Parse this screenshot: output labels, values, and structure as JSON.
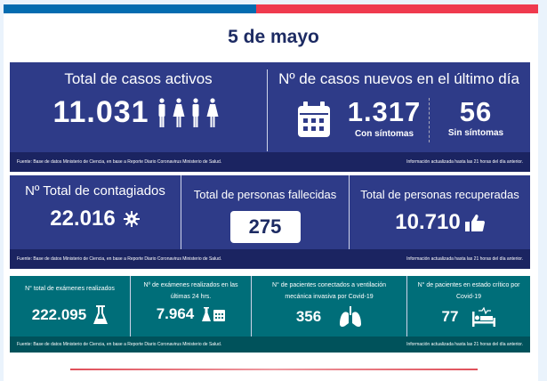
{
  "title": "5 de mayo",
  "colors": {
    "blue": "#036cb0",
    "red": "#ef3a4e",
    "navy": "#2e3b88",
    "teal": "#006e79"
  },
  "panel1": {
    "active": {
      "label": "Total de casos activos",
      "value": "11.031",
      "icon": "people-icon"
    },
    "new": {
      "label": "Nº de casos nuevos en el último día",
      "icon": "calendar-icon",
      "with_value": "1.317",
      "with_label": "Con síntomas",
      "without_value": "56",
      "without_label": "Sin síntomas"
    },
    "source": "Fuente: Base de datos Ministerio de Ciencia, en base a Reporte Diario Coronavirus Ministerio de Salud.",
    "updated": "Información actualizada hasta las 21 horas  del día anterior."
  },
  "panel2": {
    "infected": {
      "label": "Nº Total de contagiados",
      "value": "22.016",
      "icon": "virus-icon"
    },
    "deceased": {
      "label": "Total de personas fallecidas",
      "value": "275"
    },
    "recovered": {
      "label": "Total de personas recuperadas",
      "value": "10.710",
      "icon": "thumbs-up-icon"
    },
    "source": "Fuente: Base de datos Ministerio de Ciencia, en base a Reporte Diario Coronavirus Ministerio de Salud.",
    "updated": "Información actualizada hasta las 21 horas  del día anterior."
  },
  "panel3": {
    "items": [
      {
        "label": "N° total de exámenes realizados",
        "value": "222.095",
        "icon": "flask-icon"
      },
      {
        "label": "Nº de exámenes realizados en las últimas 24 hrs.",
        "value": "7.964",
        "icon": "flask-calendar-icon"
      },
      {
        "label": "N° de pacientes conectados a ventilación mecánica invasiva por Covid-19",
        "value": "356",
        "icon": "lungs-icon"
      },
      {
        "label": "N° de pacientes en estado crítico por Covid-19",
        "value": "77",
        "icon": "hospital-bed-icon"
      }
    ],
    "source": "Fuente: Base de datos Ministerio de Ciencia, en base a Reporte Diario Coronavirus Ministerio de Salud.",
    "updated": "Información actualizada hasta las 21 horas  del día anterior."
  }
}
